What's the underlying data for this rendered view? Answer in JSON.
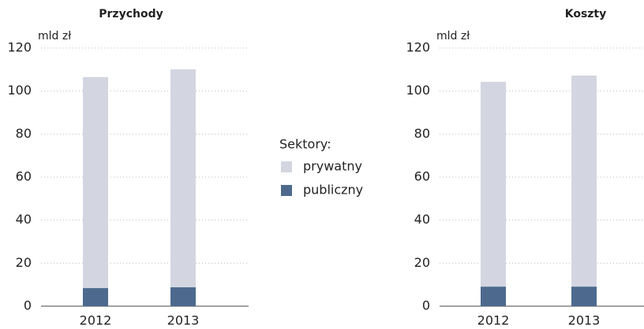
{
  "legend": {
    "title": "Sektory:"
  },
  "chart_data": [
    {
      "type": "stacked_bar",
      "title": "Przychody",
      "y_label": "mld zł",
      "categories": [
        "2012",
        "2013"
      ],
      "series": [
        {
          "name": "publiczny",
          "color": "#4d6a8e",
          "values": [
            8.4,
            8.8
          ]
        },
        {
          "name": "prywatny",
          "color": "#d3d6e0",
          "values": [
            98.1,
            101.3
          ]
        }
      ],
      "ylim": [
        0,
        120
      ],
      "yticks": [
        0,
        20,
        40,
        60,
        80,
        100,
        120
      ],
      "grid": true
    },
    {
      "type": "stacked_bar",
      "title": "Koszty",
      "y_label": "mld zł",
      "categories": [
        "2012",
        "2013"
      ],
      "series": [
        {
          "color": "#4d6a8e",
          "values": [
            9.1,
            9.1
          ]
        },
        {
          "color": "#d3d6e0",
          "values": [
            95.2,
            98.1
          ]
        }
      ],
      "ylim": [
        0,
        120
      ],
      "yticks": [
        0,
        20,
        40,
        60,
        80,
        100,
        120
      ],
      "grid": true
    }
  ]
}
